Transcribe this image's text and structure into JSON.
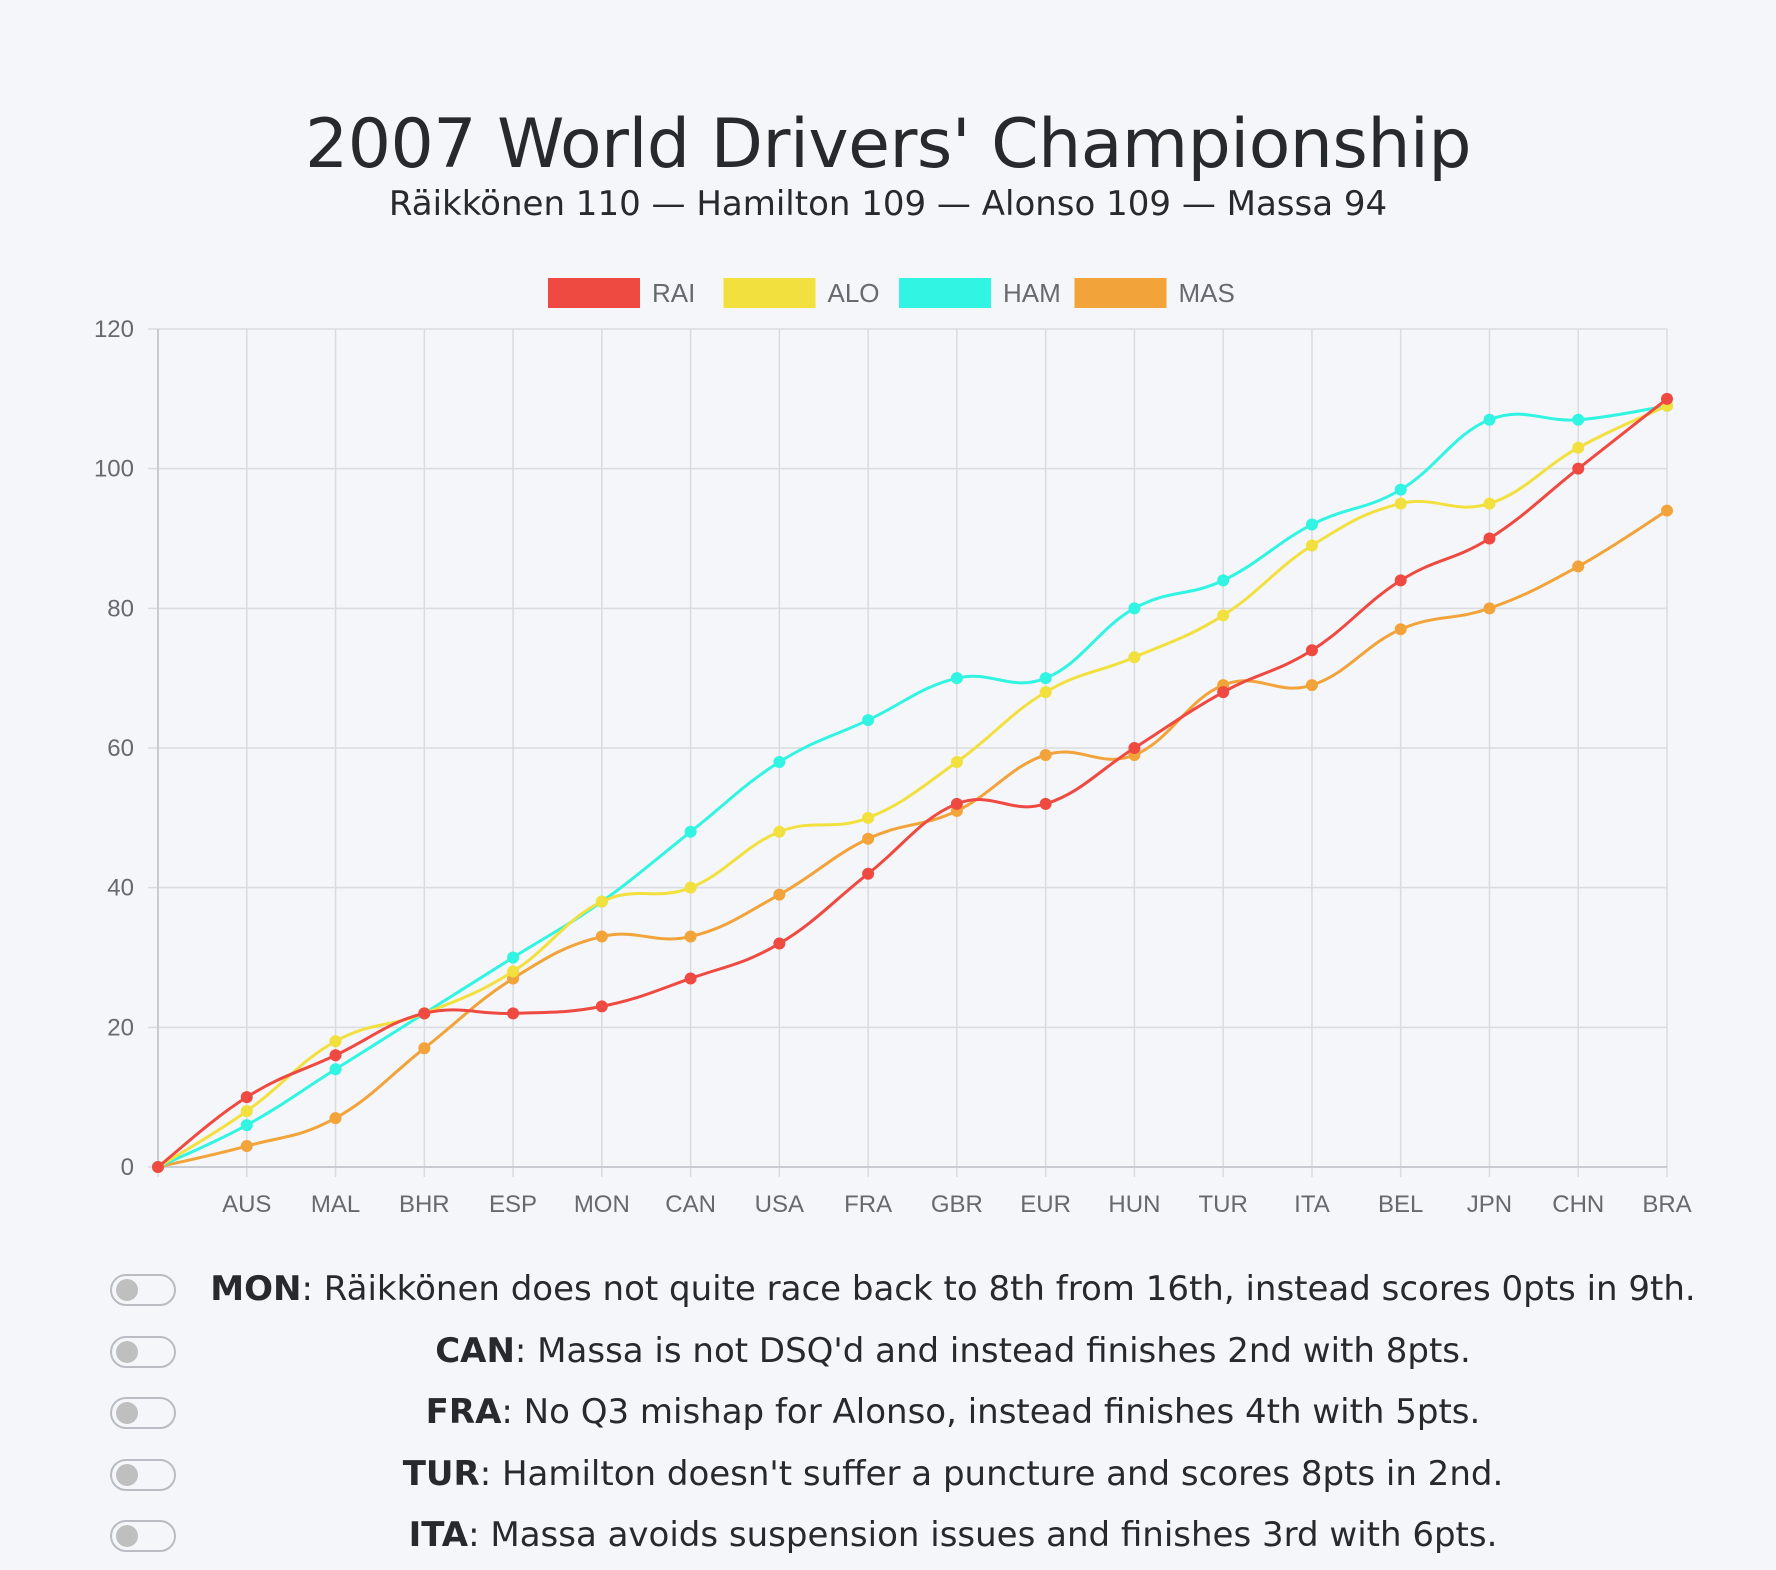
{
  "title": "2007 World Drivers' Championship",
  "subtitle": "Räikkönen 110 — Hamilton 109 — Alonso 109 — Massa 94",
  "chart_data": {
    "type": "line",
    "categories": [
      "",
      "AUS",
      "MAL",
      "BHR",
      "ESP",
      "MON",
      "CAN",
      "USA",
      "FRA",
      "GBR",
      "EUR",
      "HUN",
      "TUR",
      "ITA",
      "BEL",
      "JPN",
      "CHN",
      "BRA"
    ],
    "ylim": [
      0,
      120
    ],
    "yticks": [
      0,
      20,
      40,
      60,
      80,
      100,
      120
    ],
    "grid": true,
    "legend_position": "top",
    "series": [
      {
        "name": "RAI",
        "color": "#ef4a42",
        "values": [
          0,
          10,
          16,
          22,
          22,
          23,
          27,
          32,
          42,
          52,
          52,
          60,
          68,
          74,
          84,
          90,
          100,
          110
        ]
      },
      {
        "name": "ALO",
        "color": "#f2e03f",
        "values": [
          0,
          8,
          18,
          22,
          28,
          38,
          40,
          48,
          50,
          58,
          68,
          73,
          79,
          89,
          95,
          95,
          103,
          109
        ]
      },
      {
        "name": "HAM",
        "color": "#32f4e2",
        "values": [
          0,
          6,
          14,
          22,
          30,
          38,
          48,
          58,
          64,
          70,
          70,
          80,
          84,
          92,
          97,
          107,
          107,
          109
        ]
      },
      {
        "name": "MAS",
        "color": "#f2a33a",
        "values": [
          0,
          3,
          7,
          17,
          27,
          33,
          33,
          39,
          47,
          51,
          59,
          59,
          69,
          69,
          77,
          80,
          86,
          94
        ]
      }
    ]
  },
  "notes": [
    {
      "race": "MON",
      "text": ": Räikkönen does not quite race back to 8th from 16th, instead scores 0pts in 9th."
    },
    {
      "race": "CAN",
      "text": ": Massa is not DSQ'd and instead finishes 2nd with 8pts."
    },
    {
      "race": "FRA",
      "text": ": No Q3 mishap for Alonso, instead finishes 4th with 5pts."
    },
    {
      "race": "TUR",
      "text": ": Hamilton doesn't suffer a puncture and scores 8pts in 2nd."
    },
    {
      "race": "ITA",
      "text": ": Massa avoids suspension issues and finishes 3rd with 6pts."
    }
  ]
}
